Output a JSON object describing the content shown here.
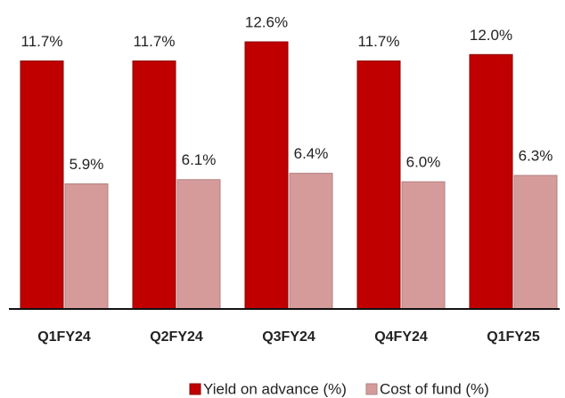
{
  "chart_data": {
    "type": "bar",
    "categories": [
      "Q1FY24",
      "Q2FY24",
      "Q3FY24",
      "Q4FY24",
      "Q1FY25"
    ],
    "series": [
      {
        "name": "Yield on advance (%)",
        "color": "#c00000",
        "values": [
          11.7,
          11.7,
          12.6,
          11.7,
          12.0
        ],
        "value_labels": [
          "11.7%",
          "11.7%",
          "12.6%",
          "11.7%",
          "12.0%"
        ]
      },
      {
        "name": "Cost of fund (%)",
        "color": "#d59b9b",
        "values": [
          5.9,
          6.1,
          6.4,
          6.0,
          6.3
        ],
        "value_labels": [
          "5.9%",
          "6.1%",
          "6.4%",
          "6.0%",
          "6.3%"
        ]
      }
    ],
    "legend": "bottom"
  }
}
